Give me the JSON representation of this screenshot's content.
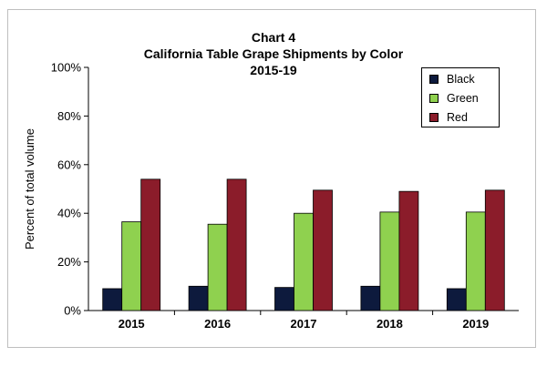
{
  "chart_data": {
    "type": "bar",
    "title_lines": [
      "Chart 4",
      "California Table Grape Shipments by Color",
      "2015-19"
    ],
    "ylabel": "Percent of total volume",
    "xlabel": "",
    "categories": [
      "2015",
      "2016",
      "2017",
      "2018",
      "2019"
    ],
    "ylim": [
      0,
      100
    ],
    "yticks": [
      "0%",
      "20%",
      "40%",
      "60%",
      "80%",
      "100%"
    ],
    "ytick_values": [
      0,
      20,
      40,
      60,
      80,
      100
    ],
    "series": [
      {
        "name": "Black",
        "color": "#0d1a3d",
        "values": [
          9,
          10,
          9.5,
          10,
          9
        ]
      },
      {
        "name": "Green",
        "color": "#8fd14f",
        "values": [
          36.5,
          35.5,
          40,
          40.5,
          40.5
        ]
      },
      {
        "name": "Red",
        "color": "#8b1c2a",
        "values": [
          54,
          54,
          49.5,
          49,
          49.5
        ]
      }
    ],
    "legend_position": "top-right",
    "grid": false
  }
}
